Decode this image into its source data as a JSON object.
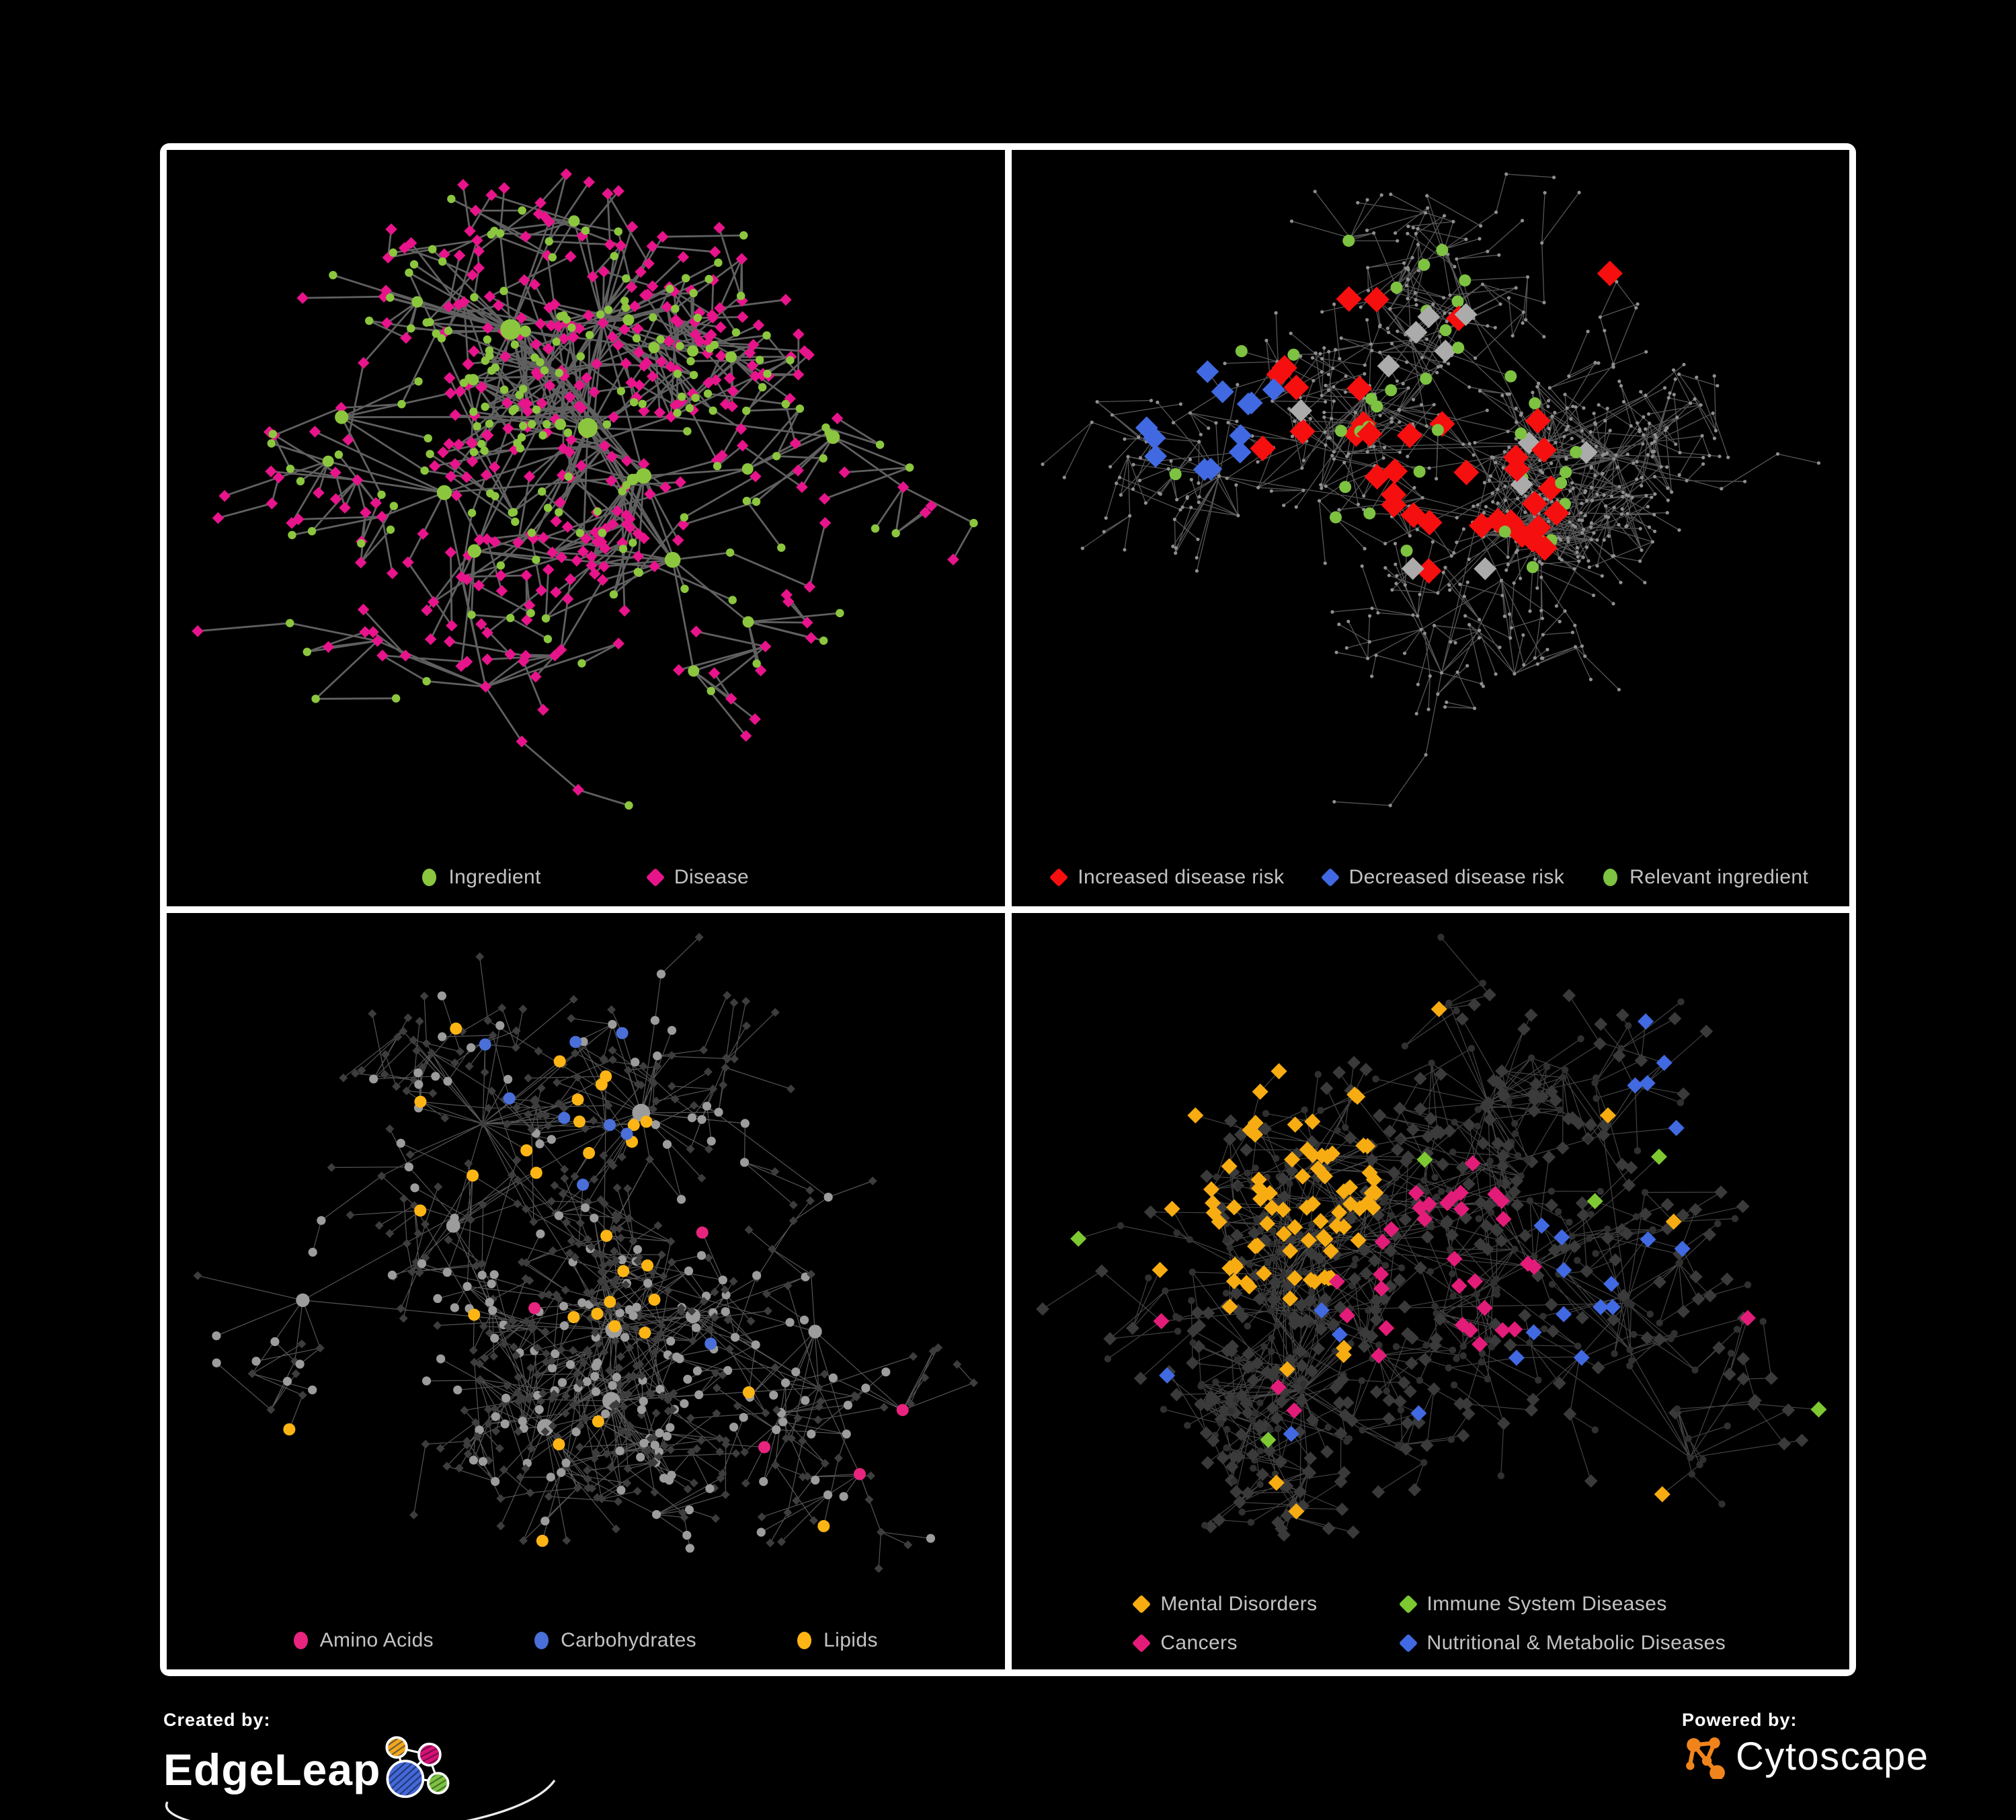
{
  "page": {
    "background": "#000000",
    "frame_color": "#ffffff"
  },
  "panels": [
    {
      "id": "ingredient-disease",
      "colors": {
        "ingredient": "#8CC63E",
        "disease": "#E8148B"
      },
      "legend": [
        {
          "label": "Ingredient",
          "shape": "circle",
          "color": "#8CC63E"
        },
        {
          "label": "Disease",
          "shape": "diamond",
          "color": "#E8148B"
        }
      ],
      "network": {
        "seed": 7,
        "nodes": 560,
        "hubs": 13,
        "hub_kids": 26,
        "chain": 0.34,
        "depth_max": 6,
        "edge_color": "#6a6a6a",
        "edge_width": 2.8,
        "edge_opacity": 0.9
      }
    },
    {
      "id": "disease-risk",
      "colors": {
        "increased": "#F50F0F",
        "decreased": "#4169E1",
        "neutral": "#ABABAB",
        "ingredient": "#7EC241",
        "base": "#8F8F8F"
      },
      "legend": [
        {
          "label": "Increased disease risk",
          "shape": "diamond",
          "color": "#F50F0F"
        },
        {
          "label": "Decreased disease risk",
          "shape": "diamond",
          "color": "#4169E1"
        },
        {
          "label": "Relevant ingredient",
          "shape": "circle",
          "color": "#7EC241"
        }
      ],
      "network": {
        "seed": 19,
        "nodes": 820,
        "hubs": 17,
        "hub_kids": 18,
        "chain": 0.58,
        "depth_max": 9,
        "edge_color": "#5f5f5f",
        "edge_width": 1.3,
        "edge_opacity": 0.9
      }
    },
    {
      "id": "nutrient-class",
      "colors": {
        "amino": "#E8247F",
        "carb": "#4A6FD9",
        "lipid": "#FDB515",
        "ingredient_base": "#9C9C9C",
        "disease_base": "#3D3D3D"
      },
      "legend": [
        {
          "label": "Amino Acids",
          "shape": "circle",
          "color": "#E8247F"
        },
        {
          "label": "Carbohydrates",
          "shape": "circle",
          "color": "#4A6FD9"
        },
        {
          "label": "Lipids",
          "shape": "circle",
          "color": "#FDB515"
        }
      ],
      "network": {
        "seed": 43,
        "nodes": 720,
        "hubs": 14,
        "hub_kids": 24,
        "chain": 0.4,
        "depth_max": 7,
        "edge_color": "#9A9A9A",
        "edge_width": 1.2,
        "edge_opacity": 0.55
      }
    },
    {
      "id": "disease-category",
      "colors": {
        "mental": "#F7AC12",
        "immune": "#7EC832",
        "cancer": "#E31C79",
        "nutritional": "#4169E1",
        "disease_base": "#3A3A3A",
        "ingredient_base": "#303030"
      },
      "legend": [
        {
          "label": "Mental Disorders",
          "shape": "diamond",
          "color": "#F7AC12"
        },
        {
          "label": "Immune System Diseases",
          "shape": "diamond",
          "color": "#7EC832"
        },
        {
          "label": "Cancers",
          "shape": "diamond",
          "color": "#E31C79"
        },
        {
          "label": "Nutritional & Metabolic Diseases",
          "shape": "diamond",
          "color": "#4169E1"
        }
      ],
      "network": {
        "seed": 61,
        "nodes": 800,
        "hubs": 15,
        "hub_kids": 24,
        "chain": 0.45,
        "depth_max": 7,
        "edge_color": "#8A8A8A",
        "edge_width": 1.15,
        "edge_opacity": 0.5
      }
    }
  ],
  "footer": {
    "created_by": {
      "label": "Created by:",
      "brand": "EdgeLeap"
    },
    "powered_by": {
      "label": "Powered by:",
      "brand": "Cytoscape",
      "accent": "#F0841C"
    }
  }
}
